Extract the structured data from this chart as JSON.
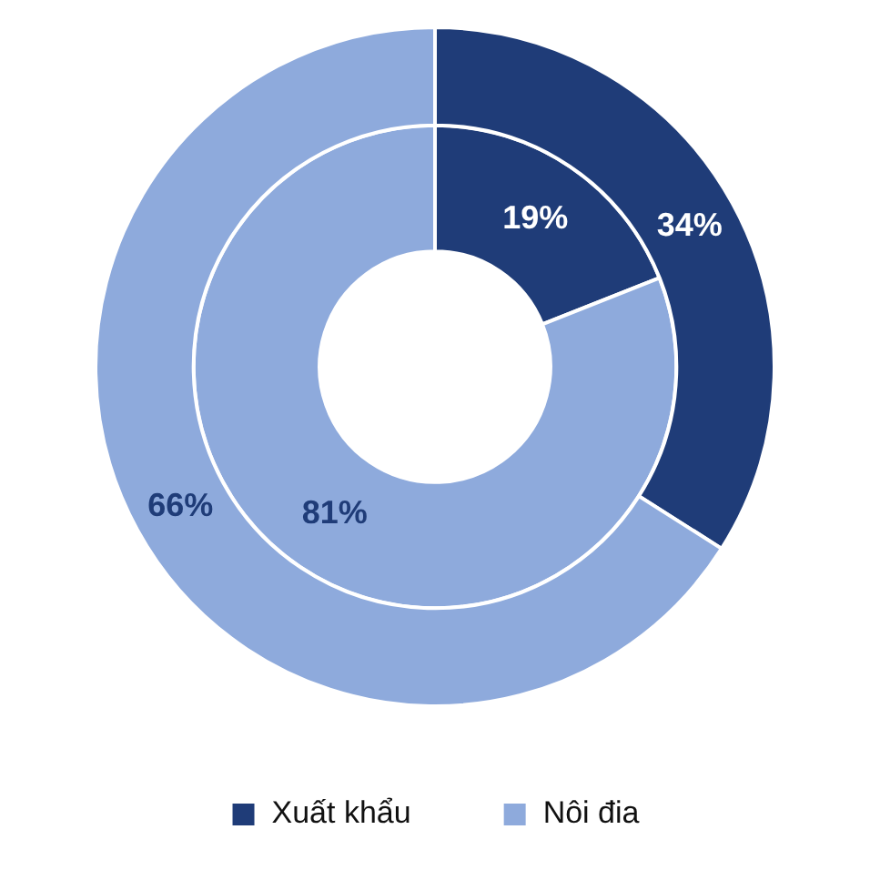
{
  "chart_data": {
    "type": "donut",
    "categories": [
      "Xuất khẩu",
      "Nôi đia"
    ],
    "colors": [
      "#1f3c78",
      "#8eaadc"
    ],
    "legend": "bottom",
    "series": [
      {
        "values": [
          19,
          81
        ],
        "value_labels": [
          "19%",
          "81%"
        ]
      },
      {
        "values": [
          34,
          66
        ],
        "value_labels": [
          "34%",
          "66%"
        ]
      }
    ]
  }
}
